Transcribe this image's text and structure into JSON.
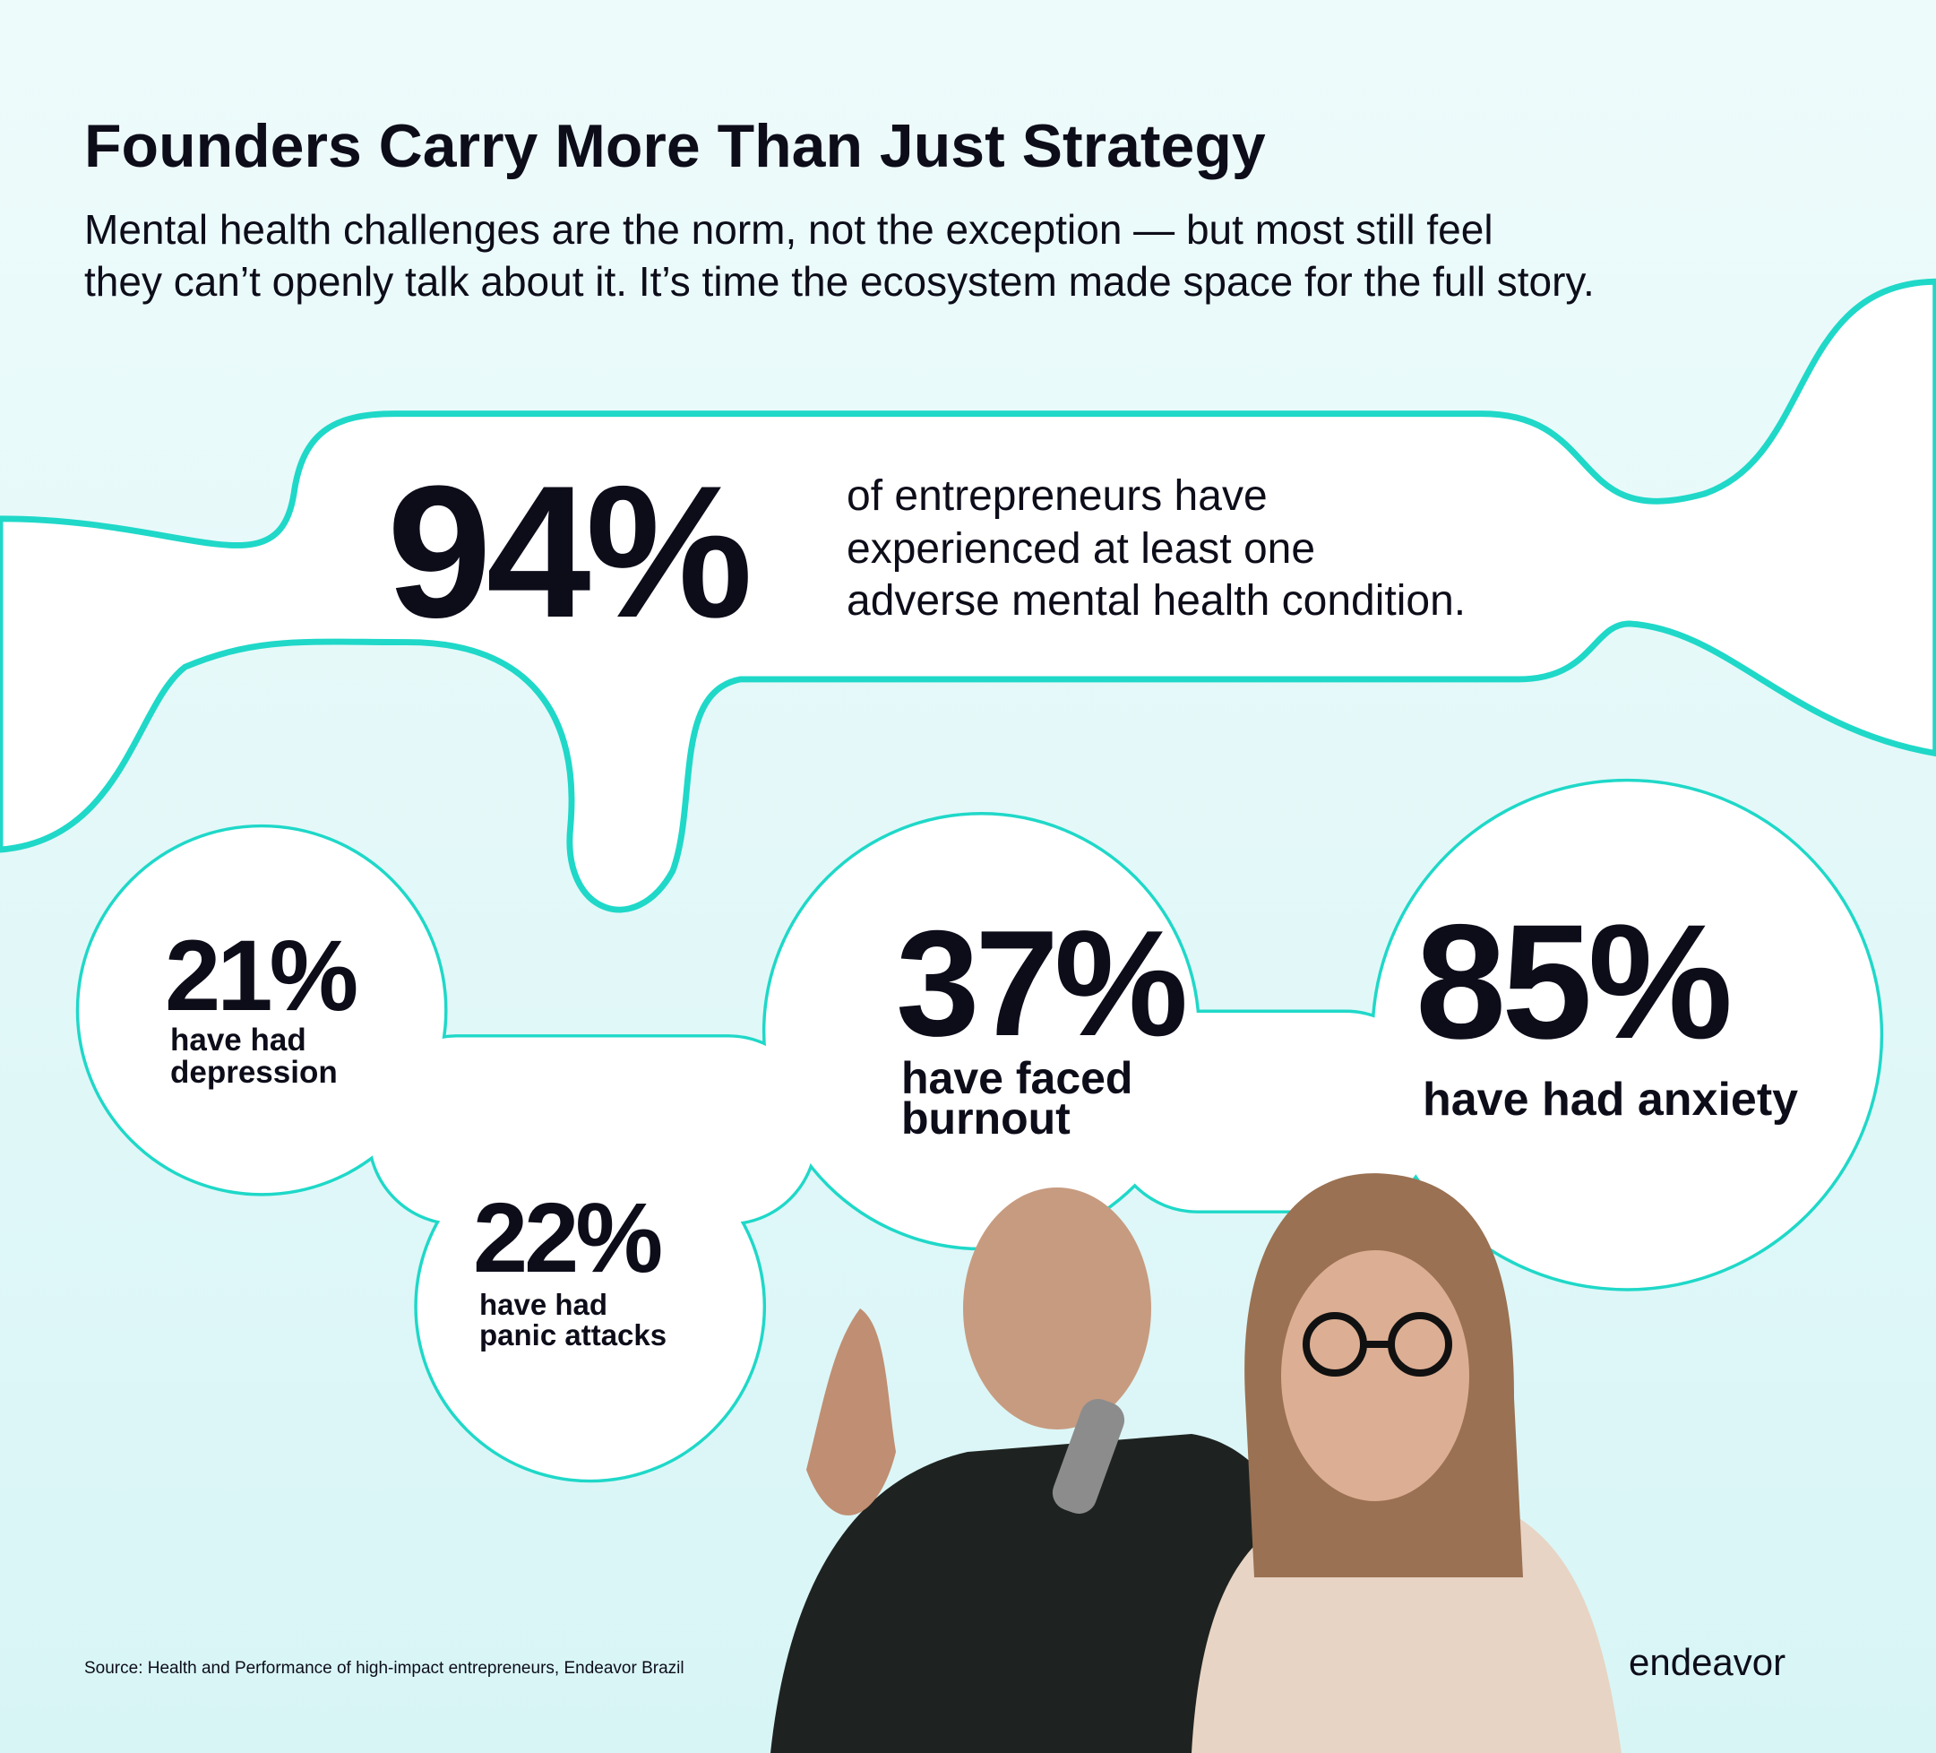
{
  "header": {
    "title": "Founders Carry More Than Just Strategy",
    "subtitle": [
      "Mental health challenges are the norm, not the exception — but most still feel",
      "they can’t openly talk about it. It’s time the ecosystem made space for the full story."
    ]
  },
  "main_stat": {
    "value": "94%",
    "text": [
      "of entrepreneurs have",
      "experienced at least one",
      "adverse mental health condition."
    ]
  },
  "stats": [
    {
      "value": "21%",
      "label": [
        "have had",
        "depression"
      ]
    },
    {
      "value": "37%",
      "label": [
        "have faced",
        "burnout"
      ]
    },
    {
      "value": "85%",
      "label": [
        "have had anxiety"
      ]
    },
    {
      "value": "22%",
      "label": [
        "have had",
        "panic attacks"
      ]
    }
  ],
  "source": "Source: Health and Performance of high-impact entrepreneurs, Endeavor Brazil",
  "logo": "endeavor"
}
